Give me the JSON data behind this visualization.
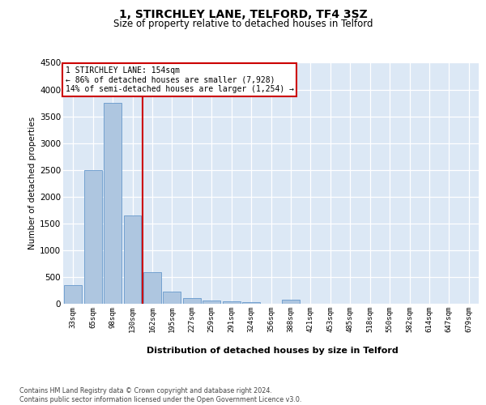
{
  "title": "1, STIRCHLEY LANE, TELFORD, TF4 3SZ",
  "subtitle": "Size of property relative to detached houses in Telford",
  "xlabel": "Distribution of detached houses by size in Telford",
  "ylabel": "Number of detached properties",
  "categories": [
    "33sqm",
    "65sqm",
    "98sqm",
    "130sqm",
    "162sqm",
    "195sqm",
    "227sqm",
    "259sqm",
    "291sqm",
    "324sqm",
    "356sqm",
    "388sqm",
    "421sqm",
    "453sqm",
    "485sqm",
    "518sqm",
    "550sqm",
    "582sqm",
    "614sqm",
    "647sqm",
    "679sqm"
  ],
  "values": [
    350,
    2500,
    3750,
    1650,
    590,
    230,
    110,
    65,
    40,
    30,
    0,
    70,
    0,
    0,
    0,
    0,
    0,
    0,
    0,
    0,
    0
  ],
  "bar_color": "#aec6e0",
  "bar_edge_color": "#6699cc",
  "background_color": "#dce8f5",
  "grid_color": "#ffffff",
  "vline_color": "#cc0000",
  "vline_pos": 3.5,
  "annotation_line1": "1 STIRCHLEY LANE: 154sqm",
  "annotation_line2": "← 86% of detached houses are smaller (7,928)",
  "annotation_line3": "14% of semi-detached houses are larger (1,254) →",
  "annotation_box_edgecolor": "#cc0000",
  "ylim": [
    0,
    4500
  ],
  "yticks": [
    0,
    500,
    1000,
    1500,
    2000,
    2500,
    3000,
    3500,
    4000,
    4500
  ],
  "footer_line1": "Contains HM Land Registry data © Crown copyright and database right 2024.",
  "footer_line2": "Contains public sector information licensed under the Open Government Licence v3.0."
}
